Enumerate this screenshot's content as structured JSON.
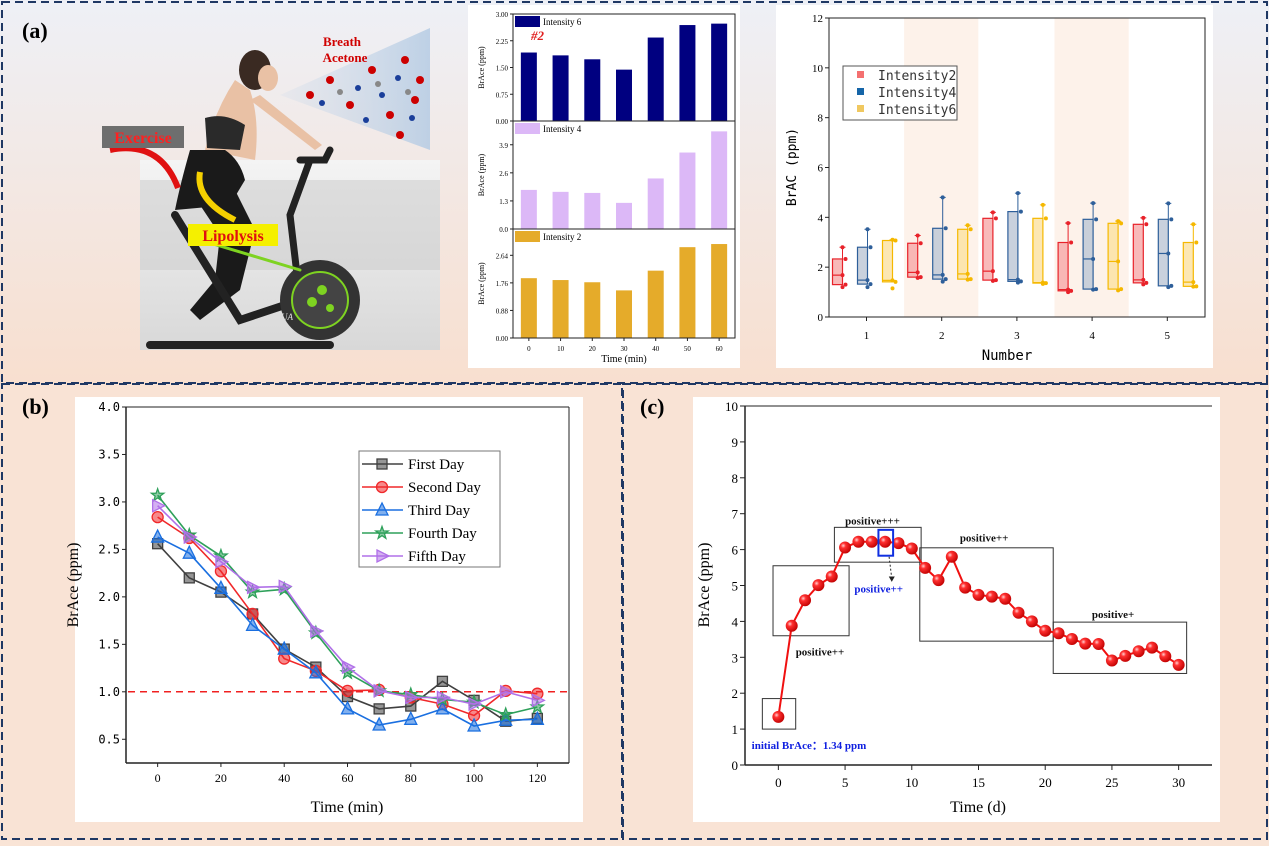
{
  "panel_labels": {
    "a": "(a)",
    "b": "(b)",
    "c": "(c)"
  },
  "illustration": {
    "breath_label_1": "Breath",
    "breath_label_2": "Acetone",
    "exercise_label": "Exercise",
    "lipolysis_label": "Lipolysis",
    "bike_brand": "SHUA"
  },
  "colors": {
    "border": "#1f3864",
    "intensity6_bar": "#000080",
    "intensity4_bar": "#dcb8f7",
    "intensity2_bar": "#e5ab2a",
    "box_intensity2": "#e8222a",
    "box_intensity4": "#2e5f9a",
    "box_intensity6": "#f5b800",
    "first_day": "#404040",
    "second_day": "#f0282a",
    "third_day": "#1a6fe0",
    "fourth_day": "#2ea05a",
    "fifth_day": "#b070e8",
    "threshold": "#f02020",
    "trend": "#f01010"
  },
  "chart_data": [
    {
      "id": "bars",
      "type": "bar",
      "annotation": "#2",
      "xlabel": "Time (min)",
      "categories": [
        "0",
        "10",
        "20",
        "30",
        "40",
        "50",
        "60"
      ],
      "subplots": [
        {
          "name": "Intensity 6",
          "ylabel": "BrAce (ppm)",
          "ylim": [
            0,
            3.0
          ],
          "yticks": [
            "0.00",
            "0.75",
            "1.50",
            "2.25",
            "3.00"
          ],
          "tickvals": [
            0,
            0.75,
            1.5,
            2.25,
            3.0
          ],
          "values": [
            1.92,
            1.84,
            1.73,
            1.44,
            2.34,
            2.69,
            2.73
          ]
        },
        {
          "name": "Intensity 4",
          "ylabel": "BrAce (ppm)",
          "ylim": [
            0,
            5.0
          ],
          "yticks": [
            "0.0",
            "1.3",
            "2.6",
            "3.9"
          ],
          "tickvals": [
            0,
            1.3,
            2.6,
            3.9
          ],
          "values": [
            1.81,
            1.72,
            1.67,
            1.21,
            2.34,
            3.54,
            4.52
          ]
        },
        {
          "name": "Intensity 2",
          "ylabel": "BrAce (ppm)",
          "ylim": [
            0,
            3.48
          ],
          "yticks": [
            "0.00",
            "0.88",
            "1.76",
            "2.64"
          ],
          "tickvals": [
            0,
            0.88,
            1.76,
            2.64
          ],
          "values": [
            1.91,
            1.85,
            1.78,
            1.52,
            2.15,
            2.9,
            3.0
          ]
        }
      ]
    },
    {
      "id": "boxes",
      "type": "box",
      "xlabel": "Number",
      "ylabel": "BrAC (ppm)",
      "ylim": [
        0,
        12
      ],
      "yticks": [
        0,
        2,
        4,
        6,
        8,
        10,
        12
      ],
      "categories": [
        "1",
        "2",
        "3",
        "4",
        "5"
      ],
      "shaded_categories": [
        "2",
        "4"
      ],
      "legend_position": "upper-left",
      "series": [
        {
          "name": "Intensity2",
          "boxes": [
            {
              "min": 1.2,
              "q1": 1.3,
              "median": 1.68,
              "q3": 2.33,
              "max": 2.8
            },
            {
              "min": 1.57,
              "q1": 1.6,
              "median": 1.79,
              "q3": 2.96,
              "max": 3.27
            },
            {
              "min": 1.45,
              "q1": 1.48,
              "median": 1.84,
              "q3": 3.96,
              "max": 4.2
            },
            {
              "min": 1.0,
              "q1": 1.05,
              "median": 1.1,
              "q3": 2.99,
              "max": 3.77
            },
            {
              "min": 1.31,
              "q1": 1.37,
              "median": 1.49,
              "q3": 3.72,
              "max": 3.98
            }
          ]
        },
        {
          "name": "Intensity4",
          "boxes": [
            {
              "min": 1.2,
              "q1": 1.32,
              "median": 1.48,
              "q3": 2.8,
              "max": 3.52
            },
            {
              "min": 1.42,
              "q1": 1.52,
              "median": 1.69,
              "q3": 3.56,
              "max": 4.8
            },
            {
              "min": 1.38,
              "q1": 1.43,
              "median": 1.5,
              "q3": 4.23,
              "max": 4.97
            },
            {
              "min": 1.1,
              "q1": 1.12,
              "median": 2.33,
              "q3": 3.92,
              "max": 4.57
            },
            {
              "min": 1.2,
              "q1": 1.25,
              "median": 2.55,
              "q3": 3.92,
              "max": 4.56
            }
          ]
        },
        {
          "name": "Intensity6",
          "boxes": [
            {
              "min": 1.15,
              "q1": 1.41,
              "median": 1.47,
              "q3": 3.07,
              "max": 3.1
            },
            {
              "min": 1.5,
              "q1": 1.52,
              "median": 1.73,
              "q3": 3.52,
              "max": 3.68
            },
            {
              "min": 1.33,
              "q1": 1.36,
              "median": 1.38,
              "q3": 3.96,
              "max": 4.5
            },
            {
              "min": 1.07,
              "q1": 1.12,
              "median": 2.23,
              "q3": 3.76,
              "max": 3.85
            },
            {
              "min": 1.22,
              "q1": 1.23,
              "median": 1.4,
              "q3": 2.99,
              "max": 3.72
            }
          ]
        }
      ]
    },
    {
      "id": "days",
      "type": "line",
      "xlabel": "Time (min)",
      "ylabel": "BrAce (ppm)",
      "xlim": [
        -10,
        130
      ],
      "ylim": [
        0.25,
        4.0
      ],
      "xticks": [
        0,
        20,
        40,
        60,
        80,
        100,
        120
      ],
      "yticks": [
        "0.5",
        "1.0",
        "1.5",
        "2.0",
        "2.5",
        "3.0",
        "3.5",
        "4.0"
      ],
      "threshold": 1.0,
      "legend_position": "upper-right",
      "x": [
        0,
        10,
        20,
        30,
        40,
        50,
        60,
        70,
        80,
        90,
        100,
        110,
        120
      ],
      "series": [
        {
          "name": "First Day",
          "marker": "square",
          "values": [
            2.56,
            2.2,
            2.05,
            1.82,
            1.45,
            1.26,
            0.95,
            0.82,
            0.85,
            1.11,
            0.91,
            0.69,
            0.72
          ]
        },
        {
          "name": "Second Day",
          "marker": "circle",
          "values": [
            2.84,
            2.62,
            2.27,
            1.82,
            1.35,
            1.22,
            1.01,
            1.02,
            0.94,
            0.87,
            0.75,
            1.01,
            0.98
          ]
        },
        {
          "name": "Third Day",
          "marker": "triangle-up",
          "values": [
            2.63,
            2.46,
            2.09,
            1.7,
            1.45,
            1.2,
            0.82,
            0.65,
            0.71,
            0.82,
            0.64,
            0.7,
            0.71
          ]
        },
        {
          "name": "Fourth Day",
          "marker": "star",
          "values": [
            3.07,
            2.65,
            2.43,
            2.05,
            2.08,
            1.62,
            1.2,
            1.01,
            0.97,
            0.92,
            0.89,
            0.76,
            0.84
          ]
        },
        {
          "name": "Fifth Day",
          "marker": "triangle-right",
          "values": [
            2.96,
            2.63,
            2.37,
            2.1,
            2.11,
            1.64,
            1.26,
            1.01,
            0.94,
            0.94,
            0.87,
            1.0,
            0.91
          ]
        }
      ]
    },
    {
      "id": "trend",
      "type": "line",
      "xlabel": "Time (d)",
      "ylabel": "BrAce (ppm)",
      "xlim": [
        -2.5,
        32.5
      ],
      "ylim": [
        0,
        10
      ],
      "xticks": [
        0,
        5,
        10,
        15,
        20,
        25,
        30
      ],
      "yticks": [
        0,
        1,
        2,
        3,
        4,
        5,
        6,
        7,
        8,
        9,
        10
      ],
      "x": [
        0,
        1,
        2,
        3,
        4,
        5,
        6,
        7,
        8,
        9,
        10,
        11,
        12,
        13,
        14,
        15,
        16,
        17,
        18,
        19,
        20,
        21,
        22,
        23,
        24,
        25,
        26,
        27,
        28,
        29,
        30
      ],
      "values": [
        1.34,
        3.88,
        4.59,
        5.01,
        5.25,
        6.06,
        6.22,
        6.22,
        6.22,
        6.18,
        6.03,
        5.49,
        5.15,
        5.8,
        4.94,
        4.74,
        4.69,
        4.63,
        4.24,
        4.0,
        3.74,
        3.67,
        3.51,
        3.38,
        3.37,
        2.91,
        3.04,
        3.17,
        3.27,
        3.03,
        2.79
      ],
      "annotations": {
        "initial": "initial BrAce：1.34 ppm",
        "rise": "positive++",
        "peak": "positive+++",
        "peak_detail": "positive++",
        "decline": "positive++",
        "tail": "positive+"
      }
    }
  ]
}
